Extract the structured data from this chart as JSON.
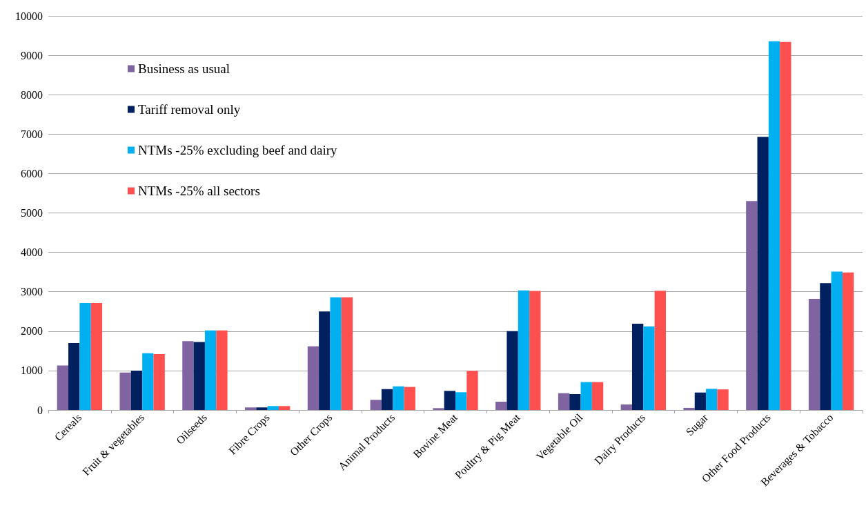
{
  "chart_data": {
    "type": "bar",
    "categories": [
      "Cereals",
      "Fruit & vegetables",
      "Oilseeds",
      "Fibre Crops",
      "Other Crops",
      "Animal Products",
      "Bovine Meat",
      "Poultry & Pig Meat",
      "Vegetable Oil",
      "Dairy Products",
      "Sugar",
      "Other Food Products",
      "Beverages & Tobacco"
    ],
    "series": [
      {
        "name": "Business as usual",
        "color": "#8064a2",
        "values": [
          1130,
          950,
          1745,
          65,
          1615,
          257,
          47,
          210,
          427,
          140,
          54,
          5300,
          2820
        ]
      },
      {
        "name": "Tariff removal only",
        "color": "#002060",
        "values": [
          1700,
          1000,
          1725,
          65,
          2500,
          530,
          485,
          2000,
          403,
          2190,
          443,
          6930,
          3220
        ]
      },
      {
        "name": "NTMs -25% excluding beef and dairy",
        "color": "#00b0f0",
        "values": [
          2715,
          1440,
          2020,
          100,
          2860,
          600,
          450,
          3035,
          708,
          2120,
          537,
          9355,
          3510
        ]
      },
      {
        "name": "NTMs -25% all sectors",
        "color": "#ff5050",
        "values": [
          2715,
          1420,
          2020,
          100,
          2860,
          585,
          995,
          3020,
          708,
          3025,
          523,
          9340,
          3490
        ]
      }
    ],
    "ylim": [
      0,
      10000
    ],
    "yticks": [
      0,
      1000,
      2000,
      3000,
      4000,
      5000,
      6000,
      7000,
      8000,
      9000,
      10000
    ],
    "grid": "y",
    "legend": "top left"
  }
}
